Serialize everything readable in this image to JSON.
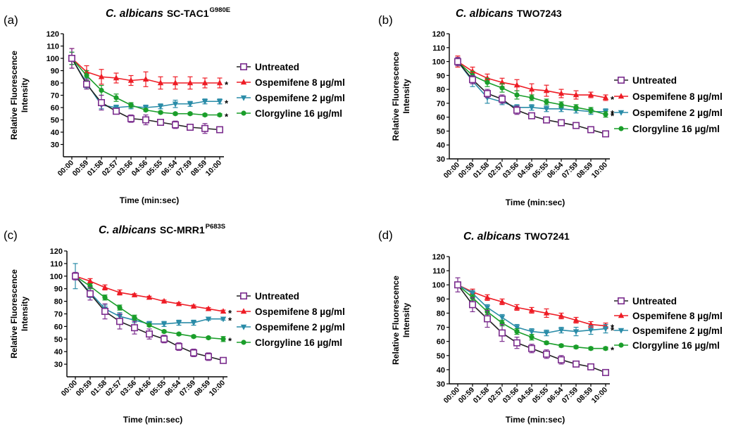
{
  "colors": {
    "Untreated": "#7b2d8e",
    "Ospemifene 8 µg/ml": "#ee1c25",
    "Ospemifene 2 µg/ml": "#2a8ca8",
    "Clorgyline 16 µg/ml": "#1a9e2a",
    "axis": "#000000"
  },
  "chart_data": [
    {
      "type": "line",
      "panel_label": "(a)",
      "title": "C. albicans SC-TAC1G980E",
      "title_italic": "C. albicans",
      "title_regular": "SC-TAC1",
      "title_sup": "G980E",
      "xlabel": "Time (min:sec)",
      "ylabel": "Relative Fluorescence Intensity",
      "ylabel_line1": "Relative Fluorescence",
      "ylabel_line2": "Intensity",
      "ylim": [
        20,
        120
      ],
      "yticks": [
        30,
        40,
        50,
        60,
        70,
        80,
        90,
        100,
        110,
        120
      ],
      "categories": [
        "00:00",
        "00:59",
        "01:58",
        "02:57",
        "03:56",
        "04:56",
        "05:55",
        "06:54",
        "07:59",
        "08:59",
        "10:00"
      ],
      "legend_position": "right",
      "series": [
        {
          "name": "Untreated",
          "marker": "square-open",
          "values": [
            100,
            79,
            64,
            57,
            51,
            50,
            48,
            46,
            44,
            43,
            42
          ],
          "errors": [
            8,
            4,
            6,
            2,
            3,
            4,
            1,
            3,
            2,
            4,
            2
          ],
          "star": false
        },
        {
          "name": "Ospemifene 8 µg/ml",
          "marker": "triangle-up",
          "values": [
            100,
            89,
            85,
            84,
            82,
            83,
            80,
            80,
            80,
            80,
            80
          ],
          "errors": [
            8,
            5,
            6,
            4,
            4,
            6,
            5,
            5,
            5,
            4,
            4
          ],
          "star": true
        },
        {
          "name": "Ospemifene 2 µg/ml",
          "marker": "triangle-down",
          "values": [
            100,
            80,
            62,
            60,
            61,
            60,
            61,
            63,
            63,
            65,
            65
          ],
          "errors": [
            5,
            4,
            3,
            2,
            2,
            2,
            2,
            3,
            2,
            2,
            2
          ],
          "star": true
        },
        {
          "name": "Clorgyline 16 µg/ml",
          "marker": "circle",
          "values": [
            100,
            86,
            74,
            68,
            62,
            58,
            56,
            55,
            55,
            54,
            54
          ],
          "errors": [
            5,
            4,
            4,
            3,
            2,
            1,
            1,
            1,
            1,
            1,
            1
          ],
          "star": true
        }
      ]
    },
    {
      "type": "line",
      "panel_label": "(b)",
      "title": "C. albicans TWO7243",
      "title_italic": "C. albicans",
      "title_regular": "TWO7243",
      "title_sup": "",
      "xlabel": "Time (min:sec)",
      "ylabel": "Relative Fluorescence Intensity",
      "ylabel_line1": "Relative Fluorescence",
      "ylabel_line2": "Intensity",
      "ylim": [
        30,
        120
      ],
      "yticks": [
        30,
        40,
        50,
        60,
        70,
        80,
        90,
        100,
        110,
        120
      ],
      "categories": [
        "00:00",
        "00:59",
        "01:58",
        "02:57",
        "03:56",
        "04:56",
        "05:55",
        "06:54",
        "07:59",
        "08:59",
        "10:00"
      ],
      "legend_position": "right",
      "series": [
        {
          "name": "Untreated",
          "marker": "square-open",
          "values": [
            100,
            87,
            77,
            73,
            65,
            61,
            58,
            56,
            54,
            51,
            48
          ],
          "errors": [
            3,
            3,
            3,
            3,
            3,
            2,
            2,
            1,
            1,
            1,
            1
          ],
          "star": false
        },
        {
          "name": "Ospemifene 8 µg/ml",
          "marker": "triangle-up",
          "values": [
            100,
            93,
            88,
            85,
            83,
            80,
            79,
            77,
            76,
            76,
            74
          ],
          "errors": [
            4,
            3,
            3,
            3,
            4,
            4,
            4,
            3,
            3,
            2,
            2
          ],
          "star": true
        },
        {
          "name": "Ospemifene 2 µg/ml",
          "marker": "triangle-down",
          "values": [
            100,
            86,
            74,
            71,
            67,
            67,
            66,
            66,
            65,
            64,
            64
          ],
          "errors": [
            3,
            4,
            4,
            2,
            2,
            2,
            2,
            2,
            2,
            2,
            2
          ],
          "star": true
        },
        {
          "name": "Clorgyline 16 µg/ml",
          "marker": "circle",
          "values": [
            100,
            90,
            85,
            81,
            76,
            74,
            71,
            69,
            67,
            65,
            62
          ],
          "errors": [
            3,
            3,
            3,
            3,
            3,
            2,
            2,
            2,
            2,
            2,
            2
          ],
          "star": true
        }
      ]
    },
    {
      "type": "line",
      "panel_label": "(c)",
      "title": "C. albicans SC-MRR1P683S",
      "title_italic": "C. albicans",
      "title_regular": "SC-MRR1",
      "title_sup": "P683S",
      "xlabel": "Time (min:sec)",
      "ylabel": "Relative Fluorescence Intensity",
      "ylabel_line1": "Relative Fluorescence",
      "ylabel_line2": "Intensity",
      "ylim": [
        20,
        120
      ],
      "yticks": [
        30,
        40,
        50,
        60,
        70,
        80,
        90,
        100,
        110,
        120
      ],
      "categories": [
        "00:00",
        "00:59",
        "01:58",
        "02:57",
        "03:56",
        "04:56",
        "05:55",
        "06:54",
        "07:59",
        "08:59",
        "10:00"
      ],
      "legend_position": "right",
      "series": [
        {
          "name": "Untreated",
          "marker": "square-open",
          "values": [
            100,
            86,
            72,
            64,
            59,
            54,
            50,
            44,
            39,
            36,
            33
          ],
          "errors": [
            3,
            5,
            6,
            6,
            5,
            4,
            3,
            3,
            3,
            3,
            2
          ],
          "star": false
        },
        {
          "name": "Ospemifene 8 µg/ml",
          "marker": "triangle-up",
          "values": [
            100,
            96,
            91,
            87,
            85,
            83,
            80,
            78,
            76,
            74,
            72
          ],
          "errors": [
            2,
            2,
            2,
            2,
            1,
            1,
            1,
            1,
            1,
            1,
            1
          ],
          "star": true
        },
        {
          "name": "Ospemifene 2 µg/ml",
          "marker": "triangle-down",
          "values": [
            100,
            87,
            74,
            68,
            65,
            62,
            62,
            63,
            63,
            66,
            66
          ],
          "errors": [
            10,
            4,
            3,
            3,
            2,
            2,
            2,
            2,
            2,
            1,
            1
          ],
          "star": true
        },
        {
          "name": "Clorgyline 16 µg/ml",
          "marker": "circle",
          "values": [
            100,
            92,
            83,
            75,
            67,
            61,
            56,
            54,
            52,
            51,
            50
          ],
          "errors": [
            2,
            2,
            2,
            2,
            2,
            1,
            1,
            1,
            1,
            1,
            2
          ],
          "star": true
        }
      ]
    },
    {
      "type": "line",
      "panel_label": "(d)",
      "title": "C. albicans TWO7241",
      "title_italic": "C. albicans",
      "title_regular": "TWO7241",
      "title_sup": "",
      "xlabel": "Time (min:sec)",
      "ylabel": "Relative Fluorescence Intensity",
      "ylabel_line1": "Relative Fluorescence",
      "ylabel_line2": "Intensity",
      "ylim": [
        30,
        120
      ],
      "yticks": [
        30,
        40,
        50,
        60,
        70,
        80,
        90,
        100,
        110,
        120
      ],
      "categories": [
        "00:00",
        "00:59",
        "01:58",
        "02:57",
        "03:56",
        "04:56",
        "05:55",
        "06:54",
        "07:59",
        "08:59",
        "10:00"
      ],
      "legend_position": "right",
      "series": [
        {
          "name": "Untreated",
          "marker": "square-open",
          "values": [
            100,
            86,
            76,
            66,
            59,
            55,
            51,
            47,
            44,
            42,
            38
          ],
          "errors": [
            5,
            5,
            6,
            6,
            4,
            3,
            3,
            3,
            2,
            2,
            2
          ],
          "star": false
        },
        {
          "name": "Ospemifene 8 µg/ml",
          "marker": "triangle-up",
          "values": [
            100,
            95,
            91,
            88,
            84,
            82,
            80,
            78,
            75,
            72,
            71
          ],
          "errors": [
            2,
            2,
            2,
            2,
            2,
            2,
            3,
            2,
            2,
            2,
            2
          ],
          "star": true
        },
        {
          "name": "Ospemifene 2 µg/ml",
          "marker": "triangle-down",
          "values": [
            100,
            94,
            84,
            77,
            70,
            67,
            66,
            68,
            67,
            68,
            69
          ],
          "errors": [
            2,
            2,
            2,
            2,
            2,
            2,
            2,
            2,
            3,
            3,
            3
          ],
          "star": true
        },
        {
          "name": "Clorgyline 16 µg/ml",
          "marker": "circle",
          "values": [
            100,
            91,
            81,
            73,
            67,
            63,
            59,
            57,
            56,
            55,
            55
          ],
          "errors": [
            2,
            2,
            2,
            2,
            2,
            2,
            1,
            1,
            1,
            1,
            1
          ],
          "star": true
        }
      ]
    }
  ]
}
